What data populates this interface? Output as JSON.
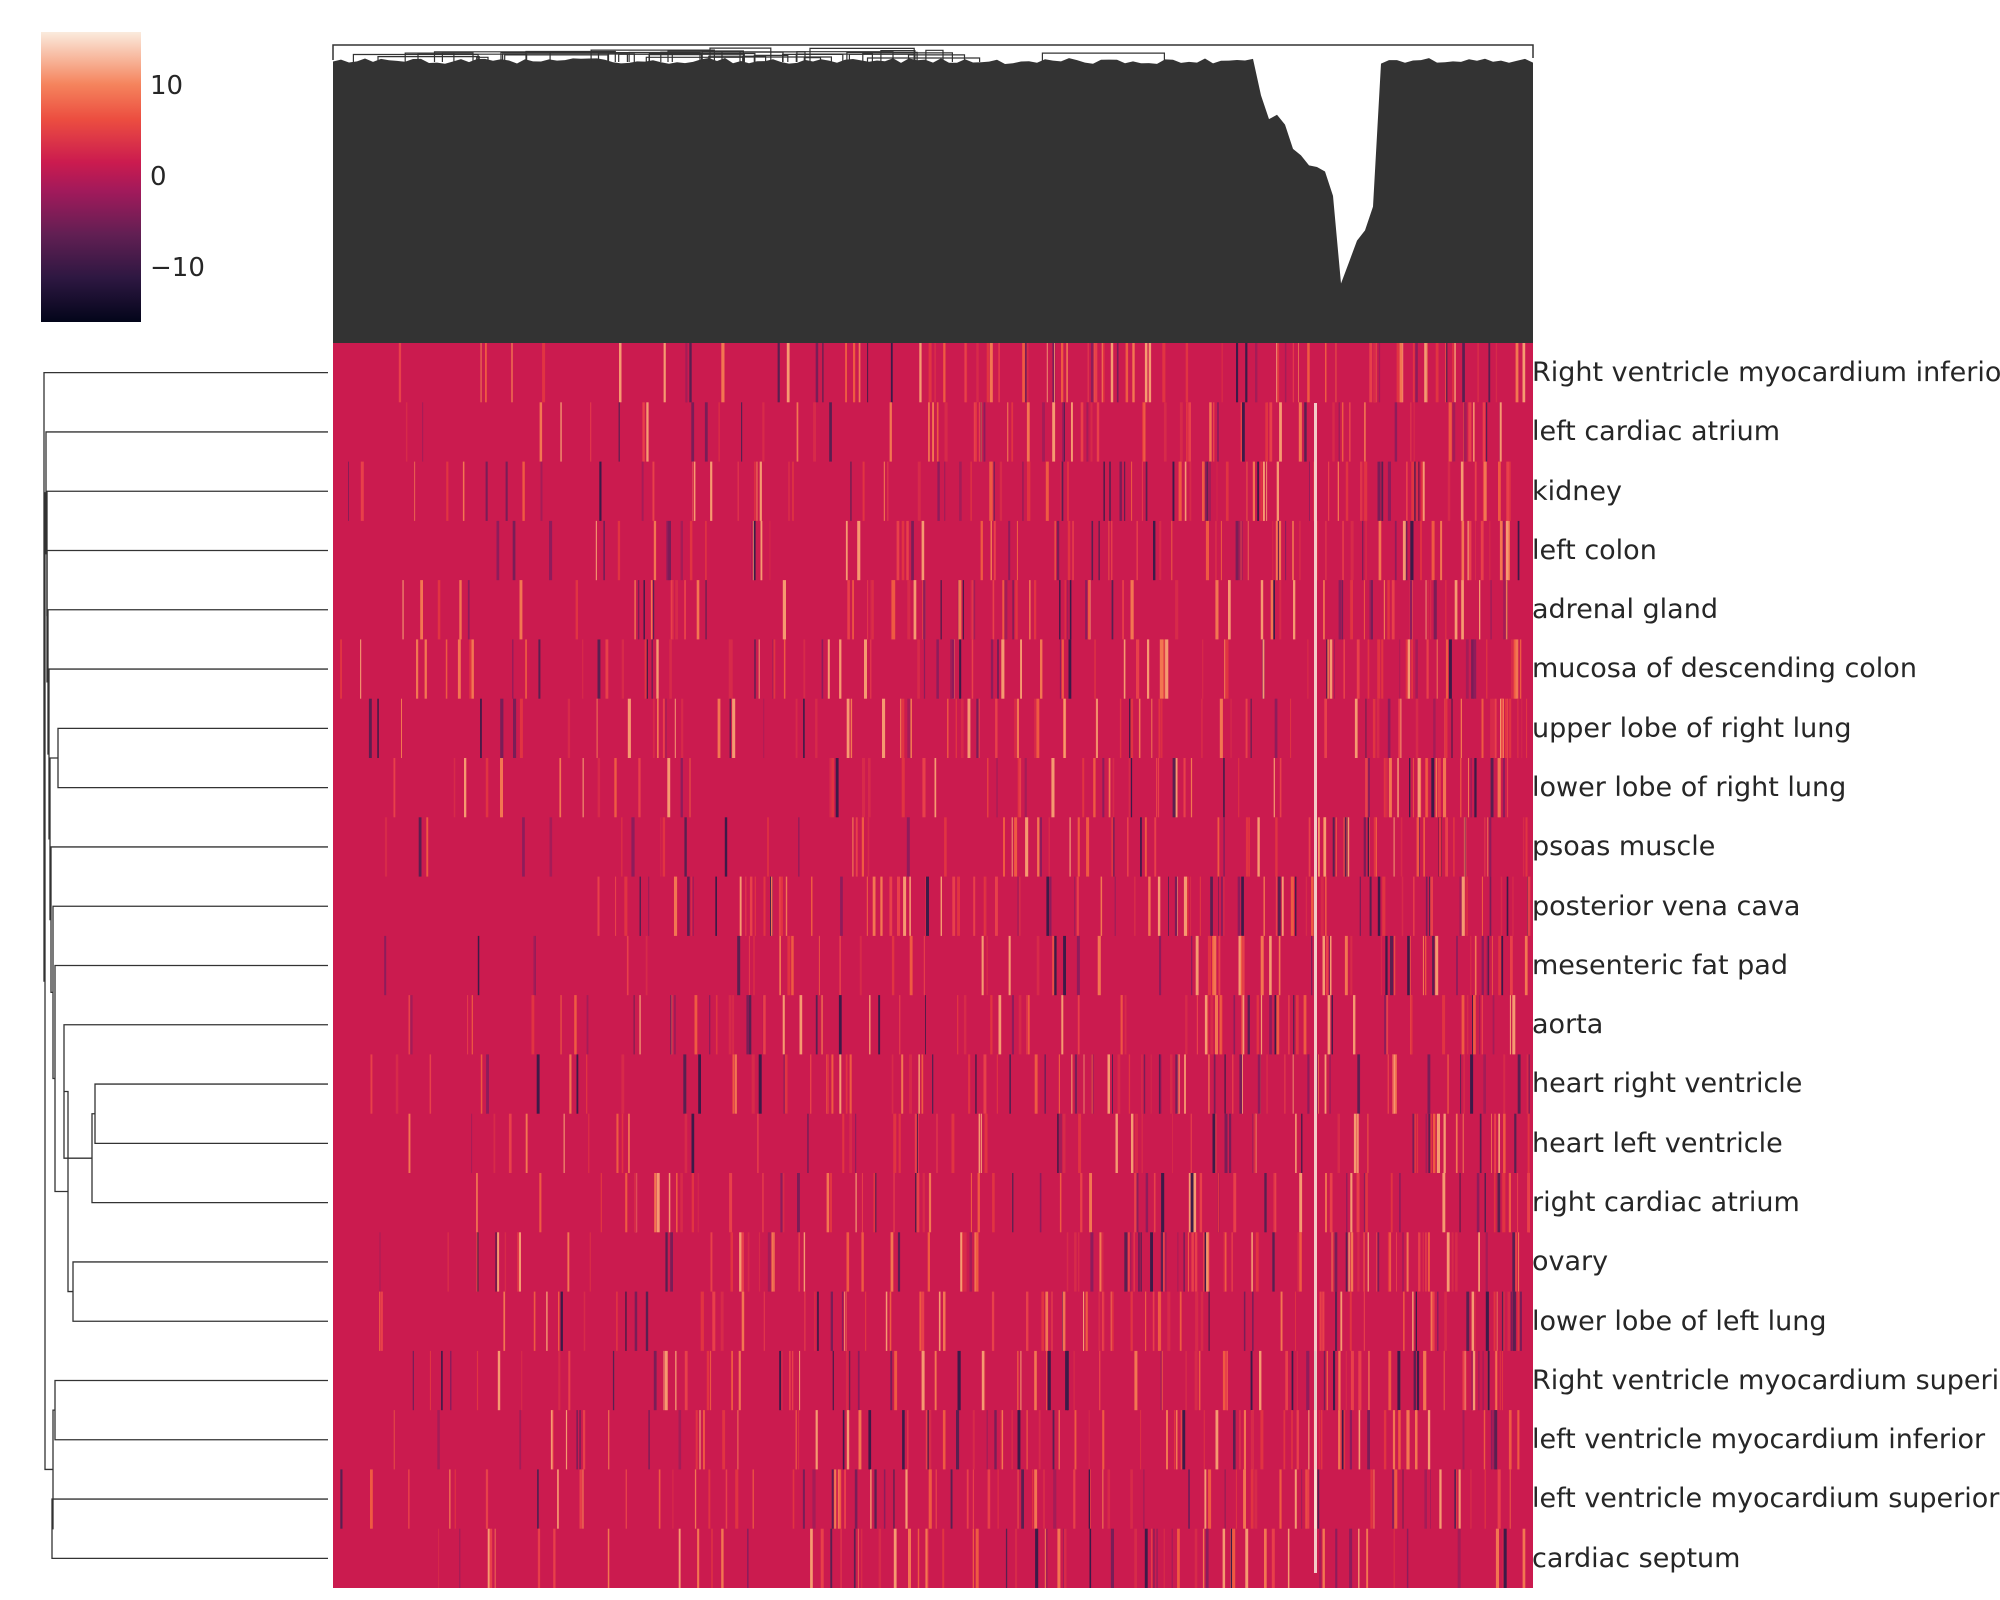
{
  "chart_data": {
    "type": "heatmap",
    "title": "",
    "xlabel": "",
    "ylabel": "",
    "rows": [
      "Right ventricle myocardium inferior",
      "left cardiac atrium",
      "kidney",
      "left colon",
      "adrenal gland",
      "mucosa of descending colon",
      "upper lobe of right lung",
      "lower lobe of right lung",
      "psoas muscle",
      "posterior vena cava",
      "mesenteric fat pad",
      "aorta",
      "heart right ventricle",
      "heart left ventricle",
      "right cardiac atrium",
      "ovary",
      "lower lobe of left lung",
      "Right ventricle myocardium superior",
      "left ventricle myocardium inferior",
      "left ventricle myocardium superior",
      "cardiac septum"
    ],
    "columns": "many (unlabeled)",
    "baseline_value": 0,
    "colorbar": {
      "ticks": [
        10,
        0,
        -10
      ],
      "tick_labels": [
        "10",
        "0",
        "−10"
      ],
      "range": [
        -16,
        16
      ],
      "colormap": "rocket"
    },
    "row_dendrogram": true,
    "column_dendrogram": true,
    "colors": {
      "baseline": "#cb1b4f",
      "high": "#faebdd",
      "low": "#03051a",
      "dendrogram": "#333333"
    }
  }
}
